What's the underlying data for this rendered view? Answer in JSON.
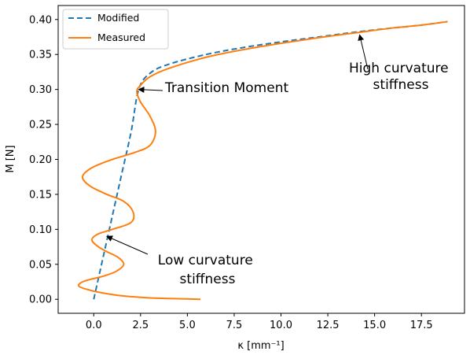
{
  "chart_data": {
    "type": "line",
    "xlabel": "κ [mm⁻¹]",
    "ylabel": "M [N]",
    "xlim": [
      -1.9,
      19.8
    ],
    "ylim": [
      -0.02,
      0.42
    ],
    "x_ticks": [
      0.0,
      2.5,
      5.0,
      7.5,
      10.0,
      12.5,
      15.0,
      17.5
    ],
    "x_tick_labels": [
      "0.0",
      "2.5",
      "5.0",
      "7.5",
      "10.0",
      "12.5",
      "15.0",
      "17.5"
    ],
    "y_ticks": [
      0.0,
      0.05,
      0.1,
      0.15,
      0.2,
      0.25,
      0.3,
      0.35,
      0.4
    ],
    "y_tick_labels": [
      "0.00",
      "0.05",
      "0.10",
      "0.15",
      "0.20",
      "0.25",
      "0.30",
      "0.35",
      "0.40"
    ],
    "grid": false,
    "legend_position": "top-left",
    "series": [
      {
        "name": "Modified",
        "style": "dashed",
        "color": "#1f77b4",
        "points": [
          [
            0.0,
            0.0
          ],
          [
            0.5,
            0.06
          ],
          [
            1.0,
            0.12
          ],
          [
            1.5,
            0.18
          ],
          [
            2.0,
            0.24
          ],
          [
            2.4,
            0.3
          ],
          [
            3.0,
            0.323
          ],
          [
            4.0,
            0.336
          ],
          [
            6.0,
            0.35
          ],
          [
            8.0,
            0.36
          ],
          [
            10.0,
            0.368
          ],
          [
            12.0,
            0.375
          ],
          [
            14.0,
            0.382
          ],
          [
            16.0,
            0.388
          ],
          [
            17.5,
            0.392
          ],
          [
            18.9,
            0.397
          ]
        ]
      },
      {
        "name": "Measured",
        "style": "solid",
        "color": "#ff7f0e",
        "points": [
          [
            5.7,
            0.0
          ],
          [
            5.0,
            0.0005
          ],
          [
            3.0,
            0.002
          ],
          [
            1.5,
            0.005
          ],
          [
            0.5,
            0.009
          ],
          [
            -0.2,
            0.013
          ],
          [
            -0.8,
            0.019
          ],
          [
            -0.5,
            0.026
          ],
          [
            0.5,
            0.033
          ],
          [
            1.2,
            0.04
          ],
          [
            1.6,
            0.05
          ],
          [
            1.3,
            0.06
          ],
          [
            0.7,
            0.068
          ],
          [
            0.2,
            0.076
          ],
          [
            -0.1,
            0.085
          ],
          [
            0.2,
            0.093
          ],
          [
            1.0,
            0.1
          ],
          [
            2.0,
            0.11
          ],
          [
            2.1,
            0.125
          ],
          [
            1.6,
            0.14
          ],
          [
            0.7,
            0.15
          ],
          [
            -0.2,
            0.162
          ],
          [
            -0.6,
            0.175
          ],
          [
            -0.1,
            0.188
          ],
          [
            1.0,
            0.2
          ],
          [
            2.2,
            0.21
          ],
          [
            3.0,
            0.22
          ],
          [
            3.3,
            0.24
          ],
          [
            3.0,
            0.262
          ],
          [
            2.5,
            0.282
          ],
          [
            2.3,
            0.297
          ],
          [
            2.5,
            0.306
          ],
          [
            3.0,
            0.318
          ],
          [
            4.0,
            0.33
          ],
          [
            6.0,
            0.346
          ],
          [
            8.0,
            0.357
          ],
          [
            10.0,
            0.366
          ],
          [
            12.0,
            0.374
          ],
          [
            14.0,
            0.381
          ],
          [
            16.0,
            0.388
          ],
          [
            17.5,
            0.392
          ],
          [
            18.9,
            0.397
          ]
        ]
      }
    ],
    "annotations": [
      {
        "text": "Transition Moment",
        "target": [
          2.4,
          0.3
        ]
      },
      {
        "text": "Low curvature stiffness",
        "lines": [
          "Low curvature",
          "stiffness"
        ],
        "target": [
          0.7,
          0.09
        ]
      },
      {
        "text": "High curvature stiffness",
        "lines": [
          "High curvature",
          "stiffness"
        ],
        "target": [
          14.2,
          0.378
        ]
      }
    ]
  }
}
